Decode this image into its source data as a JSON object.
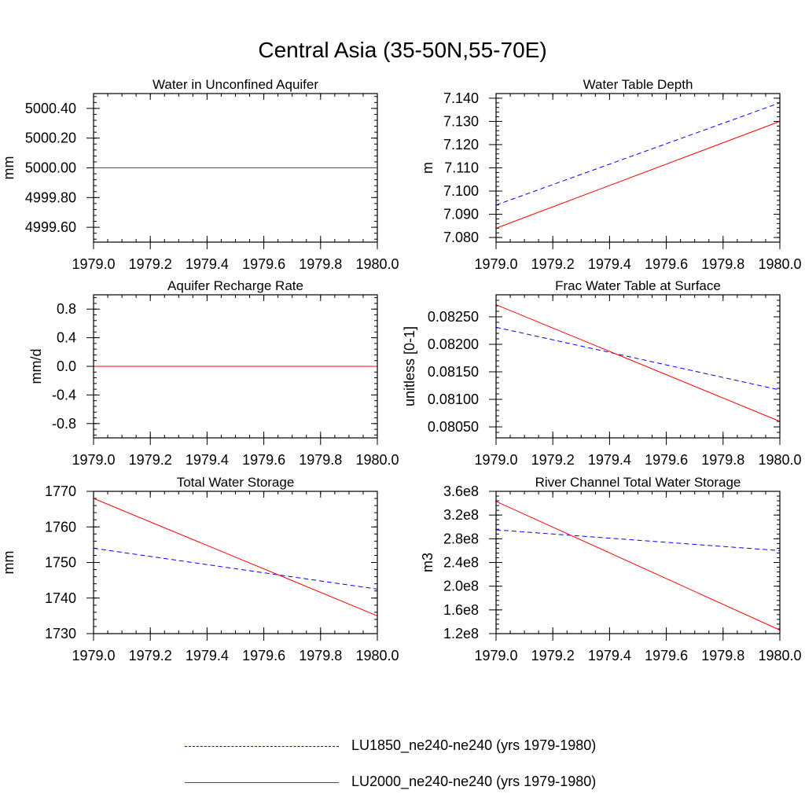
{
  "title": "Central Asia (35-50N,55-70E)",
  "colors": {
    "LU1850": "#0000ff",
    "LU2000": "#ff0000"
  },
  "legend": [
    {
      "key": "LU1850",
      "label": "LU1850_ne240-ne240 (yrs 1979-1980)",
      "color": "#0000ff",
      "dashed": true
    },
    {
      "key": "LU2000",
      "label": "LU2000_ne240-ne240 (yrs 1979-1980)",
      "color": "#ff0000",
      "dashed": false
    }
  ],
  "chart_data": [
    {
      "type": "line",
      "title": "Water in Unconfined Aquifer",
      "ylabel": "mm",
      "xlim": [
        1979.0,
        1980.0
      ],
      "xticks": [
        1979.0,
        1979.2,
        1979.4,
        1979.6,
        1979.8,
        1980.0
      ],
      "xticklabels": [
        "1979.0",
        "1979.2",
        "1979.4",
        "1979.6",
        "1979.8",
        "1980.0"
      ],
      "ylim": [
        4999.5,
        5000.5
      ],
      "yticks": [
        4999.6,
        4999.8,
        5000.0,
        5000.2,
        5000.4
      ],
      "yticklabels": [
        "4999.60",
        "4999.80",
        "5000.00",
        "5000.20",
        "5000.40"
      ],
      "series": [
        {
          "name": "LU1850_ne240-ne240 (yrs 1979-1980)",
          "x": [
            1979.0,
            1980.0
          ],
          "y": [
            5000.0,
            5000.0
          ]
        },
        {
          "name": "LU2000_ne240-ne240 (yrs 1979-1980)",
          "x": [
            1979.0,
            1980.0
          ],
          "y": [
            5000.0,
            5000.0
          ]
        }
      ]
    },
    {
      "type": "line",
      "title": "Water Table Depth",
      "ylabel": "m",
      "xlim": [
        1979.0,
        1980.0
      ],
      "xticks": [
        1979.0,
        1979.2,
        1979.4,
        1979.6,
        1979.8,
        1980.0
      ],
      "xticklabels": [
        "1979.0",
        "1979.2",
        "1979.4",
        "1979.6",
        "1979.8",
        "1980.0"
      ],
      "ylim": [
        7.078,
        7.142
      ],
      "yticks": [
        7.08,
        7.09,
        7.1,
        7.11,
        7.12,
        7.13,
        7.14
      ],
      "yticklabels": [
        "7.080",
        "7.090",
        "7.100",
        "7.110",
        "7.120",
        "7.130",
        "7.140"
      ],
      "series": [
        {
          "name": "LU1850_ne240-ne240 (yrs 1979-1980)",
          "x": [
            1979.0,
            1980.0
          ],
          "y": [
            7.094,
            7.138
          ]
        },
        {
          "name": "LU2000_ne240-ne240 (yrs 1979-1980)",
          "x": [
            1979.0,
            1980.0
          ],
          "y": [
            7.084,
            7.13
          ]
        }
      ]
    },
    {
      "type": "line",
      "title": "Aquifer Recharge Rate",
      "ylabel": "mm/d",
      "xlim": [
        1979.0,
        1980.0
      ],
      "xticks": [
        1979.0,
        1979.2,
        1979.4,
        1979.6,
        1979.8,
        1980.0
      ],
      "xticklabels": [
        "1979.0",
        "1979.2",
        "1979.4",
        "1979.6",
        "1979.8",
        "1980.0"
      ],
      "ylim": [
        -1.0,
        1.0
      ],
      "yticks": [
        -0.8,
        -0.4,
        0.0,
        0.4,
        0.8
      ],
      "yticklabels": [
        "-0.8",
        "-0.4",
        "0.0",
        "0.4",
        "0.8"
      ],
      "series": [
        {
          "name": "LU1850_ne240-ne240 (yrs 1979-1980)",
          "x": [
            1979.0,
            1980.0
          ],
          "y": [
            0.0,
            0.0
          ]
        },
        {
          "name": "LU2000_ne240-ne240 (yrs 1979-1980)",
          "x": [
            1979.0,
            1980.0
          ],
          "y": [
            0.0,
            0.0
          ]
        }
      ]
    },
    {
      "type": "line",
      "title": "Frac Water Table at Surface",
      "ylabel": "unitless [0-1]",
      "xlim": [
        1979.0,
        1980.0
      ],
      "xticks": [
        1979.0,
        1979.2,
        1979.4,
        1979.6,
        1979.8,
        1980.0
      ],
      "xticklabels": [
        "1979.0",
        "1979.2",
        "1979.4",
        "1979.6",
        "1979.8",
        "1980.0"
      ],
      "ylim": [
        0.0803,
        0.0829
      ],
      "yticks": [
        0.0805,
        0.081,
        0.0815,
        0.082,
        0.0825
      ],
      "yticklabels": [
        "0.08050",
        "0.08100",
        "0.08150",
        "0.08200",
        "0.08250"
      ],
      "series": [
        {
          "name": "LU1850_ne240-ne240 (yrs 1979-1980)",
          "x": [
            1979.0,
            1980.0
          ],
          "y": [
            0.08231,
            0.08117
          ]
        },
        {
          "name": "LU2000_ne240-ne240 (yrs 1979-1980)",
          "x": [
            1979.0,
            1980.0
          ],
          "y": [
            0.08272,
            0.0806
          ]
        }
      ]
    },
    {
      "type": "line",
      "title": "Total Water Storage",
      "ylabel": "mm",
      "xlim": [
        1979.0,
        1980.0
      ],
      "xticks": [
        1979.0,
        1979.2,
        1979.4,
        1979.6,
        1979.8,
        1980.0
      ],
      "xticklabels": [
        "1979.0",
        "1979.2",
        "1979.4",
        "1979.6",
        "1979.8",
        "1980.0"
      ],
      "ylim": [
        1730,
        1770
      ],
      "yticks": [
        1730,
        1740,
        1750,
        1760,
        1770
      ],
      "yticklabels": [
        "1730",
        "1740",
        "1750",
        "1760",
        "1770"
      ],
      "series": [
        {
          "name": "LU1850_ne240-ne240 (yrs 1979-1980)",
          "x": [
            1979.0,
            1980.0
          ],
          "y": [
            1754,
            1742.5
          ]
        },
        {
          "name": "LU2000_ne240-ne240 (yrs 1979-1980)",
          "x": [
            1979.0,
            1980.0
          ],
          "y": [
            1768,
            1735
          ]
        }
      ]
    },
    {
      "type": "line",
      "title": "River Channel Total Water Storage",
      "ylabel": "m3",
      "xlim": [
        1979.0,
        1980.0
      ],
      "xticks": [
        1979.0,
        1979.2,
        1979.4,
        1979.6,
        1979.8,
        1980.0
      ],
      "xticklabels": [
        "1979.0",
        "1979.2",
        "1979.4",
        "1979.6",
        "1979.8",
        "1980.0"
      ],
      "ylim": [
        120000000,
        360000000
      ],
      "yticks": [
        120000000,
        160000000,
        200000000,
        240000000,
        280000000,
        320000000,
        360000000
      ],
      "yticklabels": [
        "1.2e8",
        "1.6e8",
        "2.0e8",
        "2.4e8",
        "2.8e8",
        "3.2e8",
        "3.6e8"
      ],
      "series": [
        {
          "name": "LU1850_ne240-ne240 (yrs 1979-1980)",
          "x": [
            1979.0,
            1980.0
          ],
          "y": [
            295000000,
            260000000
          ]
        },
        {
          "name": "LU2000_ne240-ne240 (yrs 1979-1980)",
          "x": [
            1979.0,
            1980.0
          ],
          "y": [
            343000000,
            126000000
          ]
        }
      ]
    }
  ]
}
